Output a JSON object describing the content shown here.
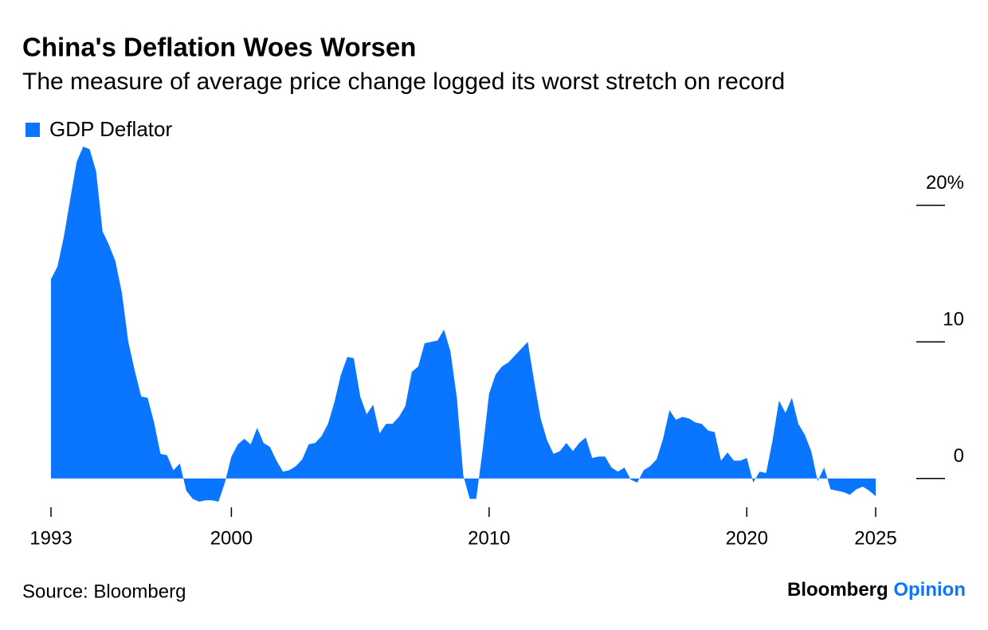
{
  "chart_data": {
    "type": "area",
    "title": "China's Deflation Woes Worsen",
    "subtitle": "The measure of average price change logged its worst stretch on record",
    "source": "Source: Bloomberg",
    "brand": [
      "Bloomberg",
      "Opinion"
    ],
    "series": [
      {
        "name": "GDP Deflator",
        "color": "#0a76ff",
        "x": [
          1993.0,
          1993.25,
          1993.5,
          1993.75,
          1994.0,
          1994.25,
          1994.5,
          1994.75,
          1995.0,
          1995.25,
          1995.5,
          1995.75,
          1996.0,
          1996.25,
          1996.5,
          1996.75,
          1997.0,
          1997.25,
          1997.5,
          1997.75,
          1998.0,
          1998.25,
          1998.5,
          1998.75,
          1999.0,
          1999.25,
          1999.5,
          1999.75,
          2000.0,
          2000.25,
          2000.5,
          2000.75,
          2001.0,
          2001.25,
          2001.5,
          2001.75,
          2002.0,
          2002.25,
          2002.5,
          2002.75,
          2003.0,
          2003.25,
          2003.5,
          2003.75,
          2004.0,
          2004.25,
          2004.5,
          2004.75,
          2005.0,
          2005.25,
          2005.5,
          2005.75,
          2006.0,
          2006.25,
          2006.5,
          2006.75,
          2007.0,
          2007.25,
          2007.5,
          2007.75,
          2008.0,
          2008.25,
          2008.5,
          2008.75,
          2009.0,
          2009.25,
          2009.5,
          2009.75,
          2010.0,
          2010.25,
          2010.5,
          2010.75,
          2011.0,
          2011.25,
          2011.5,
          2011.75,
          2012.0,
          2012.25,
          2012.5,
          2012.75,
          2013.0,
          2013.25,
          2013.5,
          2013.75,
          2014.0,
          2014.25,
          2014.5,
          2014.75,
          2015.0,
          2015.25,
          2015.5,
          2015.75,
          2016.0,
          2016.25,
          2016.5,
          2016.75,
          2017.0,
          2017.25,
          2017.5,
          2017.75,
          2018.0,
          2018.25,
          2018.5,
          2018.75,
          2019.0,
          2019.25,
          2019.5,
          2019.75,
          2020.0,
          2020.25,
          2020.5,
          2020.75,
          2021.0,
          2021.25,
          2021.5,
          2021.75,
          2022.0,
          2022.25,
          2022.5,
          2022.75,
          2023.0,
          2023.25,
          2023.5,
          2023.75,
          2024.0,
          2024.25,
          2024.5,
          2024.75,
          2025.0
        ],
        "values": [
          14.6,
          15.5,
          17.7,
          20.5,
          23.2,
          24.3,
          24.1,
          22.5,
          18.1,
          17.1,
          15.9,
          13.6,
          10.0,
          7.9,
          6.0,
          5.9,
          4.1,
          1.8,
          1.7,
          0.6,
          1.1,
          -0.9,
          -1.5,
          -1.7,
          -1.6,
          -1.6,
          -1.7,
          -0.3,
          1.6,
          2.5,
          2.9,
          2.5,
          3.7,
          2.6,
          2.3,
          1.3,
          0.5,
          0.6,
          0.9,
          1.4,
          2.5,
          2.6,
          3.1,
          4.0,
          5.6,
          7.6,
          8.9,
          8.8,
          6.0,
          4.7,
          5.4,
          3.3,
          4.0,
          4.0,
          4.5,
          5.3,
          7.8,
          8.2,
          9.9,
          10.0,
          10.1,
          10.9,
          9.3,
          5.9,
          0.2,
          -1.5,
          -1.5,
          2.1,
          6.2,
          7.6,
          8.2,
          8.5,
          9.0,
          9.5,
          10.0,
          7.1,
          4.4,
          2.8,
          1.8,
          2.0,
          2.6,
          2.0,
          2.6,
          3.0,
          1.5,
          1.6,
          1.6,
          0.8,
          0.5,
          0.8,
          -0.1,
          -0.3,
          0.6,
          0.9,
          1.4,
          2.9,
          5.0,
          4.3,
          4.5,
          4.4,
          4.1,
          4.0,
          3.5,
          3.4,
          1.3,
          1.9,
          1.3,
          1.3,
          1.5,
          -0.3,
          0.5,
          0.4,
          2.8,
          5.7,
          4.8,
          5.9,
          4.0,
          3.2,
          2.0,
          -0.2,
          0.8,
          -0.8,
          -0.9,
          -1.0,
          -1.2,
          -0.8,
          -0.6,
          -0.9,
          -1.3
        ]
      }
    ],
    "xlim": [
      1993,
      2025
    ],
    "xticks": [
      1993,
      2000,
      2010,
      2020,
      2025
    ],
    "ylim": [
      -2,
      25
    ],
    "yticks": [
      0,
      10,
      {
        "value": 20,
        "label": "20%"
      }
    ]
  }
}
